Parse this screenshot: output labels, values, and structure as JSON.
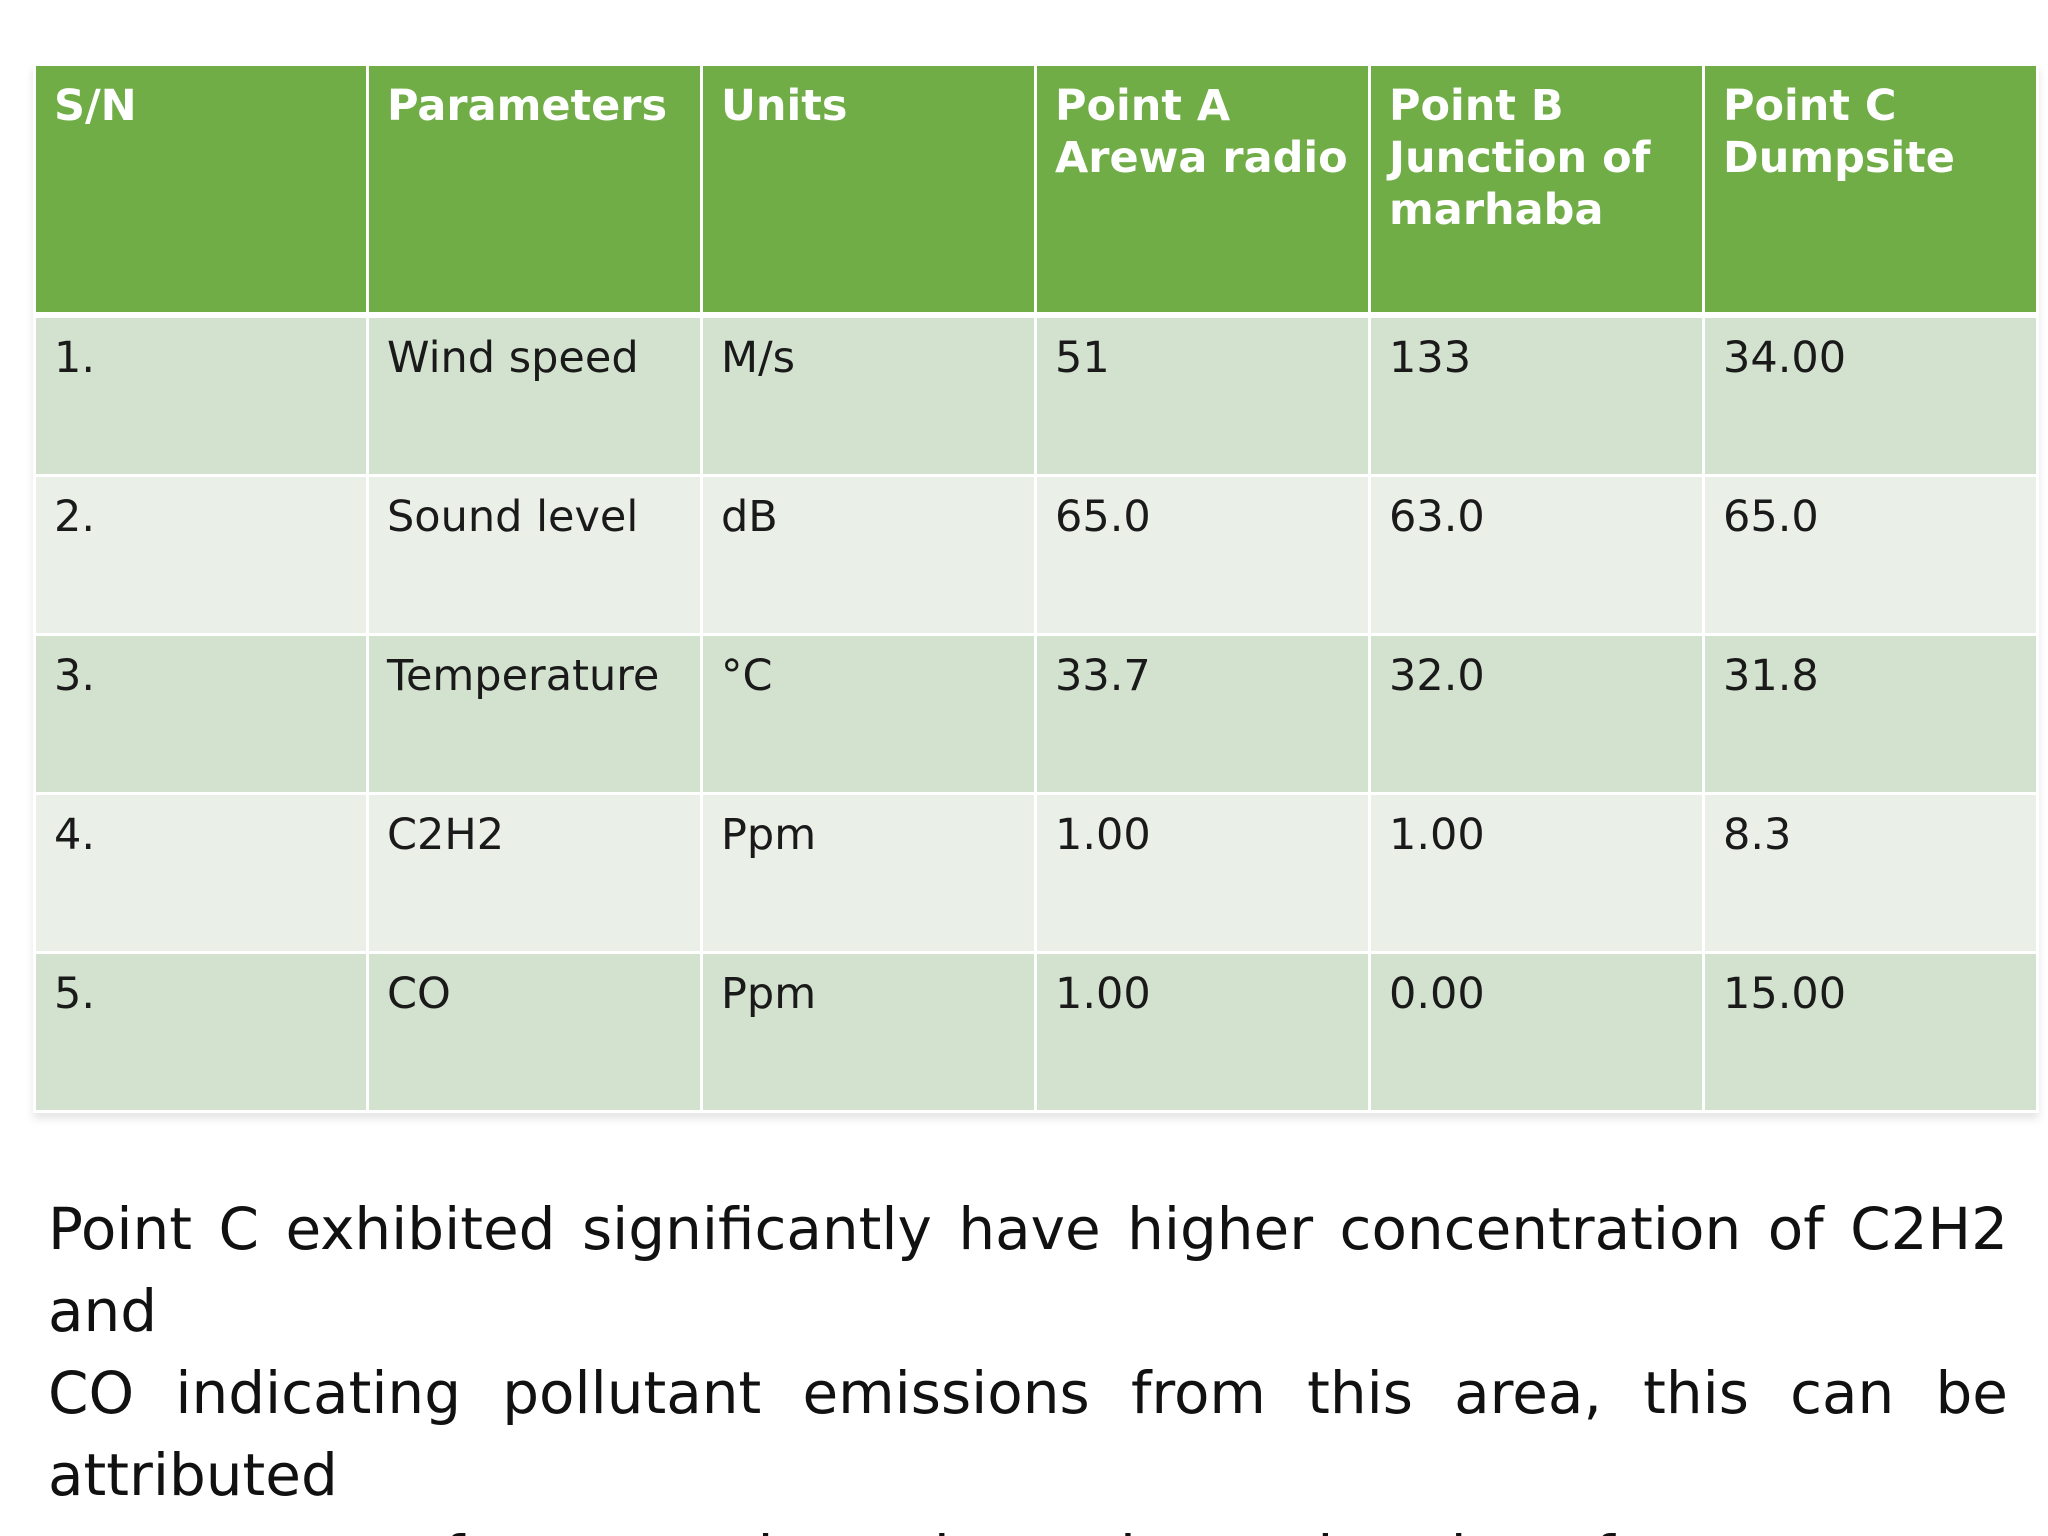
{
  "table": {
    "headers": [
      [
        "S/N"
      ],
      [
        "Parameters"
      ],
      [
        "Units"
      ],
      [
        "Point A",
        "Arewa radio"
      ],
      [
        "Point B",
        "Junction of",
        "marhaba"
      ],
      [
        "Point C",
        "Dumpsite"
      ]
    ],
    "rows": [
      [
        "1.",
        "Wind speed",
        "M/s",
        "51",
        "133",
        "34.00"
      ],
      [
        "2.",
        "Sound level",
        "dB",
        "65.0",
        "63.0",
        "65.0"
      ],
      [
        "3.",
        "Temperature",
        "°C",
        "33.7",
        "32.0",
        "31.8"
      ],
      [
        "4.",
        "C2H2",
        "Ppm",
        "1.00",
        "1.00",
        "8.3"
      ],
      [
        "5.",
        "CO",
        "Ppm",
        "1.00",
        "0.00",
        "15.00"
      ]
    ]
  },
  "caption": {
    "lines": [
      "Point C exhibited significantly have higher concentration of C2H2 and",
      "CO indicating pollutant emissions from this area, this can be attributed",
      "to presence of an open dumpsite and open burning of waste."
    ]
  },
  "colors": {
    "header_bg": "#70ad47",
    "row_odd_bg": "#d3e2ce",
    "row_even_bg": "#eaefe8"
  }
}
